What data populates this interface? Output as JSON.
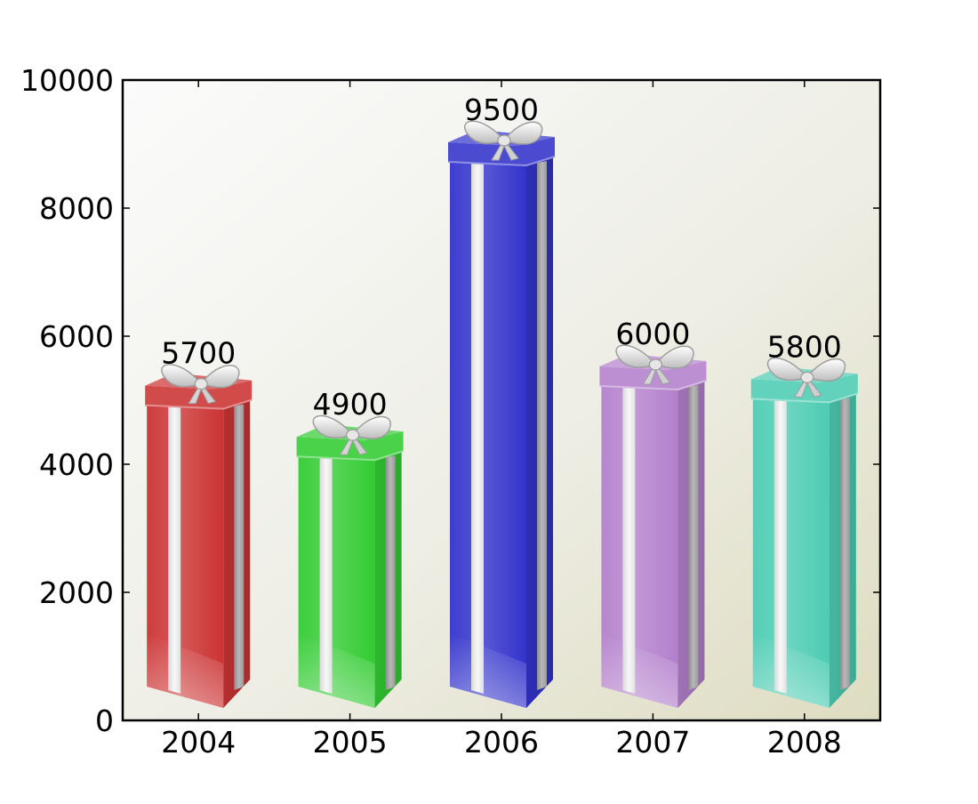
{
  "chart_data": {
    "type": "bar",
    "categories": [
      "2004",
      "2005",
      "2006",
      "2007",
      "2008"
    ],
    "values": [
      5700,
      4900,
      9500,
      6000,
      5800
    ],
    "data_labels": [
      "5700",
      "4900",
      "9500",
      "6000",
      "5800"
    ],
    "ylim": [
      0,
      10000
    ],
    "yticks": [
      "0",
      "2000",
      "4000",
      "6000",
      "8000",
      "10000"
    ],
    "title": "",
    "xlabel": "",
    "ylabel": "",
    "grid": false,
    "bar_style": "gift-box",
    "colors": [
      "#cc3333",
      "#33cc33",
      "#3333cc",
      "#b380cc",
      "#4dccb3"
    ],
    "ribbon_color": "#c8c8c8",
    "background_gradient": [
      "#fbfbfb",
      "#dedcc0"
    ]
  }
}
